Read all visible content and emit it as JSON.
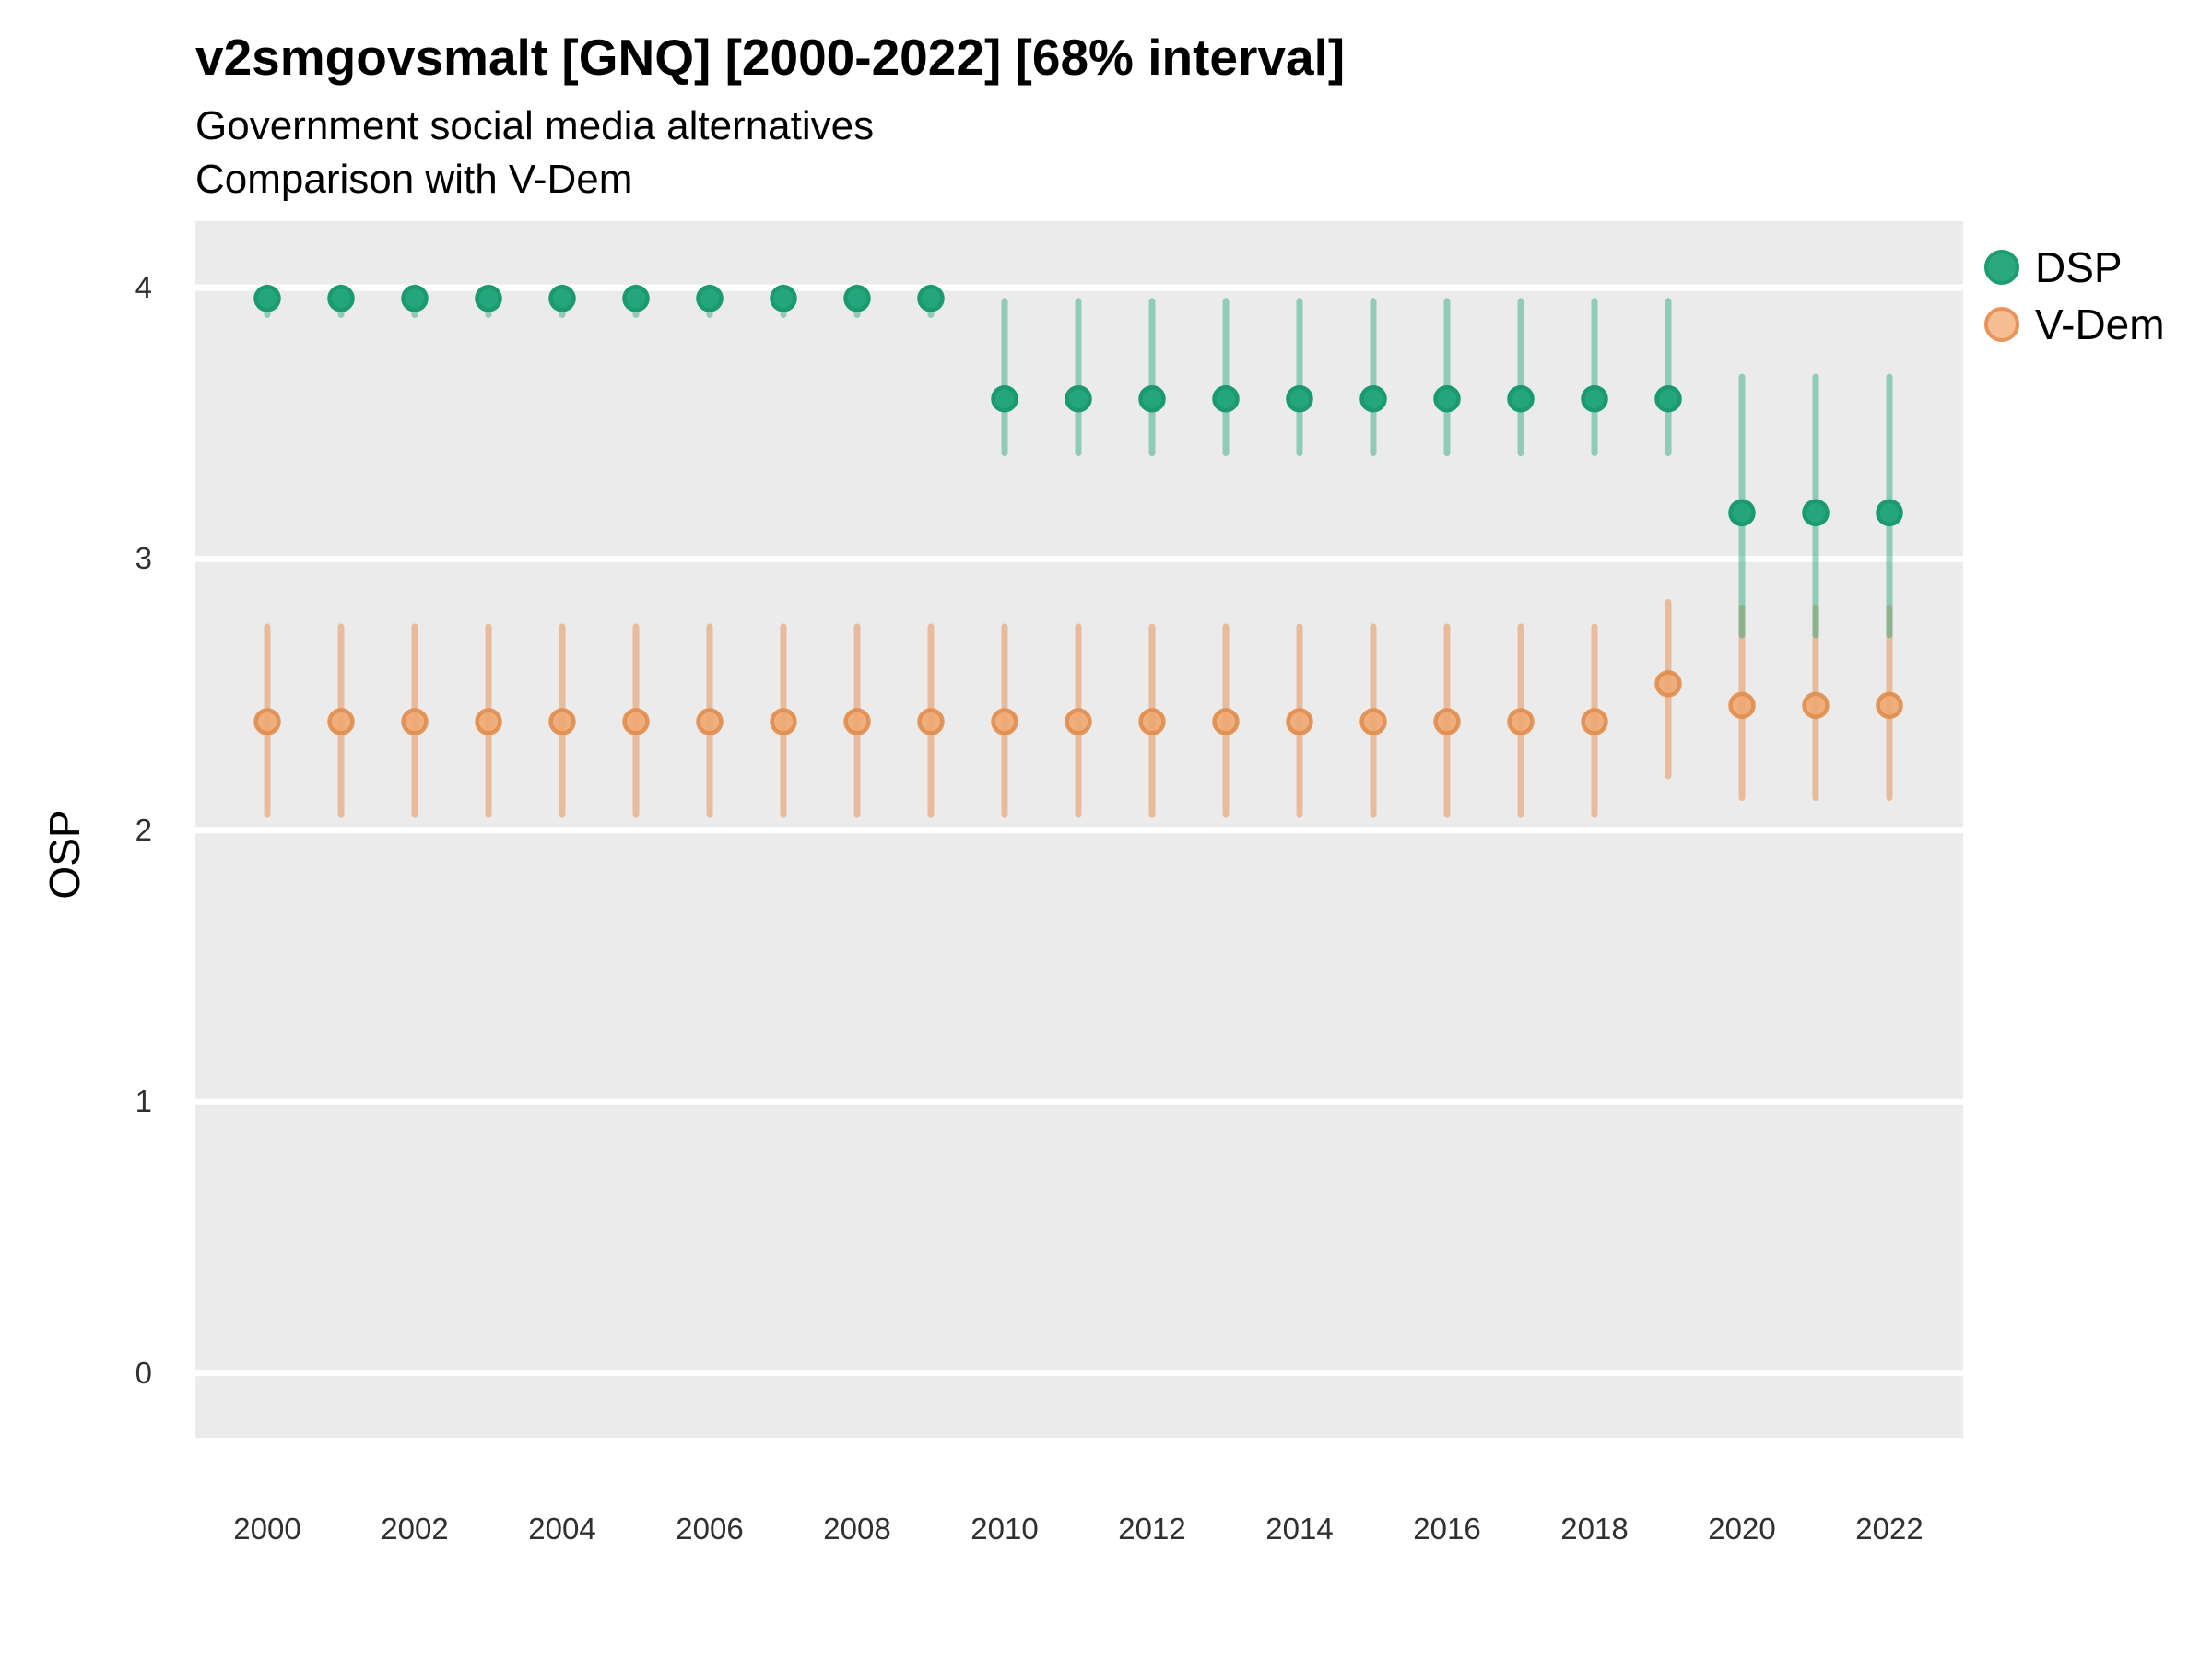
{
  "header": {
    "title": "v2smgovsmalt [GNQ] [2000-2022] [68% interval]",
    "subtitle1": "Government social media alternatives",
    "subtitle2": "Comparison with V-Dem"
  },
  "chart_data": {
    "type": "scatter",
    "title": "v2smgovsmalt [GNQ] [2000-2022] [68% interval]",
    "subtitle": "Government social media alternatives / Comparison with V-Dem",
    "interval_label": "68% interval",
    "xlabel": "",
    "ylabel": "OSP",
    "x": [
      2000,
      2001,
      2002,
      2003,
      2004,
      2005,
      2006,
      2007,
      2008,
      2009,
      2010,
      2011,
      2012,
      2013,
      2014,
      2015,
      2016,
      2017,
      2018,
      2019,
      2020,
      2021,
      2022
    ],
    "xticks": [
      2000,
      2002,
      2004,
      2006,
      2008,
      2010,
      2012,
      2014,
      2016,
      2018,
      2020,
      2022
    ],
    "yticks": [
      0,
      1,
      2,
      3,
      4
    ],
    "ylim": [
      -0.24,
      4.24
    ],
    "xlim": [
      1999,
      2023.5
    ],
    "grid": "major-horizontal-white",
    "panel_background": "#EBEBEB",
    "gridline_color": "#FFFFFF",
    "legend_position": "top-right",
    "series": [
      {
        "name": "DSP",
        "point_fill": "#24a67c",
        "point_stroke": "#1a9a6e",
        "bar_color": "rgba(36,166,124,0.46)",
        "legend_fill": "#2aa87e",
        "legend_stroke": "#1e9c72",
        "est": [
          3.96,
          3.96,
          3.96,
          3.96,
          3.96,
          3.96,
          3.96,
          3.96,
          3.96,
          3.96,
          3.59,
          3.59,
          3.59,
          3.59,
          3.59,
          3.59,
          3.59,
          3.59,
          3.59,
          3.59,
          3.17,
          3.17,
          3.17
        ],
        "lo": [
          3.9,
          3.9,
          3.9,
          3.9,
          3.9,
          3.9,
          3.9,
          3.9,
          3.9,
          3.9,
          3.39,
          3.39,
          3.39,
          3.39,
          3.39,
          3.39,
          3.39,
          3.39,
          3.39,
          3.39,
          2.72,
          2.72,
          2.72
        ],
        "hi": [
          4.0,
          4.0,
          4.0,
          4.0,
          4.0,
          4.0,
          4.0,
          4.0,
          4.0,
          4.0,
          3.95,
          3.95,
          3.95,
          3.95,
          3.95,
          3.95,
          3.95,
          3.95,
          3.95,
          3.95,
          3.67,
          3.67,
          3.67
        ]
      },
      {
        "name": "V-Dem",
        "point_fill": "rgba(238,168,115,0.92)",
        "point_stroke": "rgba(224,139,74,0.88)",
        "bar_color": "rgba(230,148,92,0.55)",
        "legend_fill": "#f4bd92",
        "legend_stroke": "#e6945c",
        "est": [
          2.4,
          2.4,
          2.4,
          2.4,
          2.4,
          2.4,
          2.4,
          2.4,
          2.4,
          2.4,
          2.4,
          2.4,
          2.4,
          2.4,
          2.4,
          2.4,
          2.4,
          2.4,
          2.4,
          2.54,
          2.46,
          2.46,
          2.46
        ],
        "lo": [
          2.06,
          2.06,
          2.06,
          2.06,
          2.06,
          2.06,
          2.06,
          2.06,
          2.06,
          2.06,
          2.06,
          2.06,
          2.06,
          2.06,
          2.06,
          2.06,
          2.06,
          2.06,
          2.06,
          2.2,
          2.12,
          2.12,
          2.12
        ],
        "hi": [
          2.75,
          2.75,
          2.75,
          2.75,
          2.75,
          2.75,
          2.75,
          2.75,
          2.75,
          2.75,
          2.75,
          2.75,
          2.75,
          2.75,
          2.75,
          2.75,
          2.75,
          2.75,
          2.75,
          2.84,
          2.82,
          2.82,
          2.82
        ]
      }
    ]
  }
}
